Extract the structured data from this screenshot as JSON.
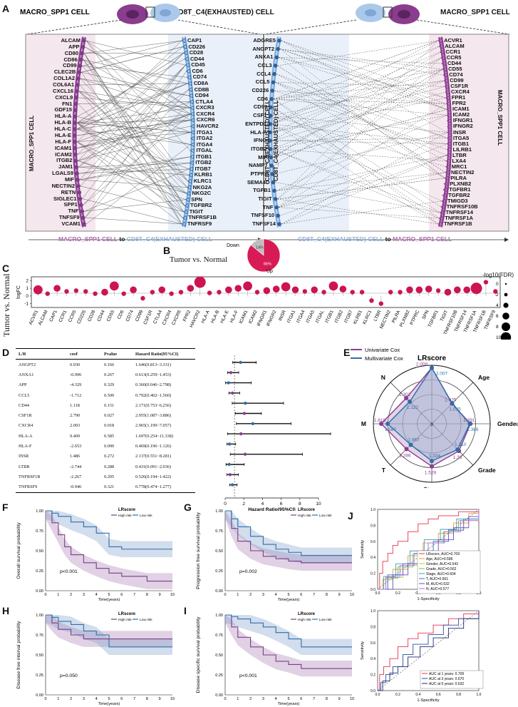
{
  "panels": {
    "A": "A",
    "B": "B",
    "C": "C",
    "D": "D",
    "E": "E",
    "F": "F",
    "G": "G",
    "H": "H",
    "I": "I",
    "J": "J"
  },
  "panelA": {
    "left_cell_top": "MACRO_SPP1 CELL",
    "mid_cell_top": "CD8T_C4(EXHAUSTED) CELL",
    "right_cell_top": "MACRO_SPP1 CELL",
    "left_vertical": "MACRO_SPP1 CELL",
    "mid_vertical_1": "CD8T_C4(EXHAUSTED) CELL",
    "mid_vertical_2": "CD8T_C4(EXHAUSTED) CELL",
    "right_vertical": "MACRO_SPP1 CELL",
    "bottom_left": {
      "from": "MACRO_SPP1 CELL",
      "to_word": "to",
      "to": "CD8T_C4(EXHAUSTED) CELL"
    },
    "bottom_right": {
      "from": "CD8T_C4(EXHAUSTED) CELL",
      "to_word": "to",
      "to": "MACRO_SPP1 CELL"
    },
    "left_ligands": [
      "ALCAM",
      "APP",
      "CD80",
      "CD86",
      "CD99",
      "CLEC2B",
      "COL1A2",
      "COL6A1",
      "CXCL16",
      "CXCL9",
      "FN1",
      "GDF15",
      "HLA-A",
      "HLA-B",
      "HLA-C",
      "HLA-E",
      "HLA-F",
      "ICAM1",
      "ICAM2",
      "ITGB2",
      "JAM1",
      "LGALS9",
      "MIF",
      "NECTIN2",
      "RETN",
      "SIGLEC1",
      "SPP1",
      "TNF",
      "TNFSF9",
      "VCAM1"
    ],
    "left_receptors": [
      "CAP1",
      "CD226",
      "CD28",
      "CD44",
      "CD45",
      "CD6",
      "CD74",
      "CD8A",
      "CD8B",
      "CD94",
      "CTLA4",
      "CXCR3",
      "CXCR4",
      "CXCR6",
      "HAVCR2",
      "ITGA1",
      "ITGA2",
      "ITGA4",
      "ITGAL",
      "ITGB1",
      "ITGB2",
      "ITGB7",
      "KLRB1",
      "KLRC1",
      "NKG2A",
      "NKG2C",
      "SPN",
      "TGFBR2",
      "TIGIT",
      "TNFRSF1B",
      "TNFRSF9"
    ],
    "right_ligands": [
      "ADGRE5",
      "ANGPT2",
      "ANXA1",
      "CCL3",
      "CCL4",
      "CCL5",
      "CD226",
      "CD6",
      "CD99",
      "CSF1",
      "ENTPD1",
      "HLA-F",
      "IFNG",
      "ITGB2",
      "MIF",
      "NAMPT",
      "PTPRC",
      "SEMA4D",
      "TGFB1",
      "TIGIT",
      "TNF",
      "TNFSF10",
      "TNFSF14"
    ],
    "right_receptors": [
      "ACVR1",
      "ALCAM",
      "CCR1",
      "CCR5",
      "CD44",
      "CD55",
      "CD74",
      "CD99",
      "CSF1R",
      "CXCR4",
      "FPR1",
      "FPR2",
      "ICAM1",
      "ICAM2",
      "IFNGR1",
      "IFNGR2",
      "INSR",
      "ITGA5",
      "ITGB1",
      "LILRB1",
      "LTBR",
      "LXA4",
      "MRC1",
      "NECTIN2",
      "PILRA",
      "PLXNB2",
      "TGFBR1",
      "TGFBR2",
      "TMIGD3",
      "TNFRSF10B",
      "TNFRSF14",
      "TNFRSF1A",
      "TNFRSF1B"
    ]
  },
  "panelB": {
    "title": "Tumor vs. Normal",
    "chart_data": {
      "type": "pie",
      "labels": [
        "Down",
        "Up"
      ],
      "values": [
        14,
        86
      ],
      "slice_labels": [
        "14%",
        "86%"
      ],
      "colors": [
        "#bdbdbd",
        "#d81b56"
      ]
    }
  },
  "panelC": {
    "ylabel_outer": "Tumor vs. Normal",
    "chart_data": {
      "type": "scatter",
      "ylabel": "logFC",
      "ylim": [
        -1.5,
        2.5
      ],
      "yticks": [
        "2",
        "1",
        "0",
        "-1"
      ],
      "categories": [
        "ACVR1",
        "ALCAM",
        "CAP1",
        "CCR1",
        "CCR5",
        "CD226",
        "CD28",
        "CD44",
        "CD55",
        "CD6",
        "CD74",
        "CD99",
        "CSF1R",
        "CTLA4",
        "CXCR4",
        "CXCR6",
        "FPR2",
        "HAVCR2",
        "HLA-A",
        "HLA-B",
        "HLA-E",
        "HLA-F",
        "ICAM1",
        "ICAM2",
        "IFNGR1",
        "IFNGR2",
        "INSR",
        "ITGA1",
        "ITGA4",
        "ITGA5",
        "ITGAL",
        "ITGB1",
        "ITGB2",
        "ITGB7",
        "KLRB1",
        "KLRC1",
        "LTBR",
        "NECTIN2",
        "PILRA",
        "PLXNB2",
        "PTPRC",
        "SPN",
        "TGFBR1",
        "TIGIT",
        "TNFRSF10B",
        "TNFRSF14",
        "TNFRSF1A",
        "TNFRSF1B",
        "TNFRSF9"
      ],
      "values": [
        0.8,
        0.3,
        1.0,
        0.6,
        0.7,
        0.6,
        0.3,
        0.5,
        1.3,
        0.3,
        0.8,
        -0.3,
        0.5,
        0.8,
        0.3,
        0.5,
        1.0,
        1.8,
        0.4,
        0.5,
        0.8,
        1.0,
        1.3,
        0.5,
        0.7,
        0.9,
        1.2,
        0.8,
        0.6,
        0.8,
        0.5,
        1.3,
        0.9,
        0.5,
        0.5,
        -0.6,
        -1.0,
        0.5,
        0.5,
        0.8,
        0.8,
        0.9,
        0.7,
        0.5,
        0.8,
        0.8,
        1.0,
        1.8,
        0.6
      ],
      "sizes": [
        4,
        2,
        3,
        2,
        2,
        2,
        2,
        3,
        4,
        2,
        3,
        2,
        2,
        3,
        2,
        2,
        3,
        5,
        2,
        2,
        3,
        3,
        4,
        2,
        3,
        3,
        4,
        3,
        2,
        3,
        2,
        4,
        3,
        2,
        2,
        2,
        2,
        2,
        2,
        3,
        3,
        3,
        2,
        3,
        3,
        3,
        5,
        2,
        2
      ],
      "legend_title": "-log10(FDR)",
      "legend_values": [
        "0",
        "2",
        "4",
        "6",
        "8",
        "10"
      ]
    }
  },
  "panelD": {
    "headers": [
      "L/R",
      "coef",
      "Pvalue",
      "Hazard Ratio(95%CI)"
    ],
    "rows": [
      [
        "ANGPT2",
        "0.930",
        "0.166",
        "1.646(0.813~3.331)"
      ],
      [
        "ANXA1",
        "-0.996",
        "0.267",
        "0.613(0.259~1.453)"
      ],
      [
        "APP",
        "-4.329",
        "0.329",
        "0.360(0.046~2.798)"
      ],
      [
        "CCL5",
        "-1.712",
        "0.500",
        "0.792(0.402~1.560)"
      ],
      [
        "CD44",
        "1.118",
        "0.151",
        "2.171(0.753~6.256)"
      ],
      [
        "CSF1R",
        "2.790",
        "0.027",
        "2.055(1.087~3.886)"
      ],
      [
        "CXCR4",
        "2.003",
        "0.018",
        "2.965(1.199~7.057)"
      ],
      [
        "HLA-A",
        "9.409",
        "0.585",
        "1.697(0.254~11.338)"
      ],
      [
        "HLA-F",
        "-2.653",
        "0.090",
        "0.469(0.196~1.126)"
      ],
      [
        "INSR",
        "1.486",
        "0.272",
        "2.137(0.551~8.281)"
      ],
      [
        "LTBR",
        "-2.744",
        "0.288",
        "0.431(0.091~2.036)"
      ],
      [
        "TNFRSF1B",
        "-2.267",
        "0.205",
        "0.526(0.194~1.422)"
      ],
      [
        "TNFRSF9",
        "-0.946",
        "0.321",
        "0.778(0.474~1.277)"
      ]
    ],
    "forest": {
      "xlabel": "Hazard Ratio(95%CI)",
      "xticks": [
        "0",
        "2",
        "4",
        "6",
        "8",
        "10"
      ],
      "hr": [
        1.646,
        0.613,
        0.36,
        0.792,
        2.171,
        2.055,
        2.965,
        1.697,
        0.469,
        2.137,
        0.431,
        0.526,
        0.778
      ],
      "lo": [
        0.813,
        0.259,
        0.046,
        0.402,
        0.753,
        1.087,
        1.199,
        0.254,
        0.196,
        0.551,
        0.091,
        0.194,
        0.474
      ],
      "hi": [
        3.331,
        1.453,
        2.798,
        1.56,
        6.256,
        3.886,
        7.057,
        11.338,
        1.126,
        8.281,
        2.036,
        1.422,
        1.277
      ]
    }
  },
  "panelE": {
    "legend": [
      "Univariate Cox",
      "Multivariate Cox"
    ],
    "chart_data": {
      "type": "radar",
      "axes": [
        "LRscore",
        "Age",
        "Gender",
        "Grade",
        "Stage",
        "T",
        "M",
        "N"
      ],
      "univariate": [
        2.008,
        1.025,
        1.391,
        1.38,
        1.529,
        1.286,
        1.818,
        1.302
      ],
      "multivariate": [
        2.007,
        1.035,
        1.366,
        1.31,
        1.334,
        1.067,
        1.587,
        1.122
      ],
      "univariate_labels": [
        "2.008",
        "1.025",
        "1.391",
        "1.38",
        "1.529",
        "1.286",
        "1.818",
        "1.302"
      ],
      "multivariate_labels": [
        "2.007",
        "1.035",
        "1.366",
        "1.310",
        "1.334",
        "1.067",
        "1.587",
        "1.122"
      ],
      "center_label": "0"
    }
  },
  "km": {
    "legend_title": "LRscore",
    "legend_items": [
      "High risk",
      "Low risk"
    ],
    "xlabel": "Time(years)",
    "yticks": [
      "1.00",
      "0.75",
      "0.50",
      "0.25",
      "0.00"
    ],
    "xticks": [
      "0",
      "1",
      "2",
      "3",
      "4",
      "5",
      "6",
      "7",
      "8",
      "9",
      "10"
    ],
    "F": {
      "ylabel": "Overall survival probability",
      "p": "p<0.001"
    },
    "G": {
      "ylabel": "Progression free survival probability",
      "p": "p=0.002"
    },
    "H": {
      "ylabel": "Disease free interval probability",
      "p": "p=0.050"
    },
    "I": {
      "ylabel": "Disease specific survival probability",
      "p": "p<0.001"
    }
  },
  "panelJ": {
    "top": {
      "xlabel": "1-Specificity",
      "ylabel": "Sensitivity",
      "ticks": [
        "0.0",
        "0.2",
        "0.4",
        "0.6",
        "0.8",
        "1.0"
      ],
      "legend": [
        "LRscore, AUC=0.709",
        "Age, AUC=0.586",
        "Gender, AUC=0.543",
        "Grade, AUC=0.562",
        "Stage, AUC=0.604",
        "T, AUC=0.561",
        "M, AUC=0.532",
        "N, AUC=0.577"
      ],
      "colors": [
        "#e8324f",
        "#e89a3c",
        "#c8c836",
        "#6fbf4a",
        "#3aa0b8",
        "#3c6fd1",
        "#6a4bc4",
        "#b26fd6"
      ]
    },
    "bottom": {
      "xlabel": "1-Specificity",
      "ylabel": "Sensitivity",
      "ticks": [
        "0.0",
        "0.2",
        "0.4",
        "0.6",
        "0.8",
        "1.0"
      ],
      "legend": [
        "AUC at 1 years: 0.709",
        "AUC at 3 years: 0.670",
        "AUC at 5 years: 0.632"
      ],
      "colors": [
        "#e8324f",
        "#2c4aa8",
        "#1d2a6e"
      ]
    }
  }
}
